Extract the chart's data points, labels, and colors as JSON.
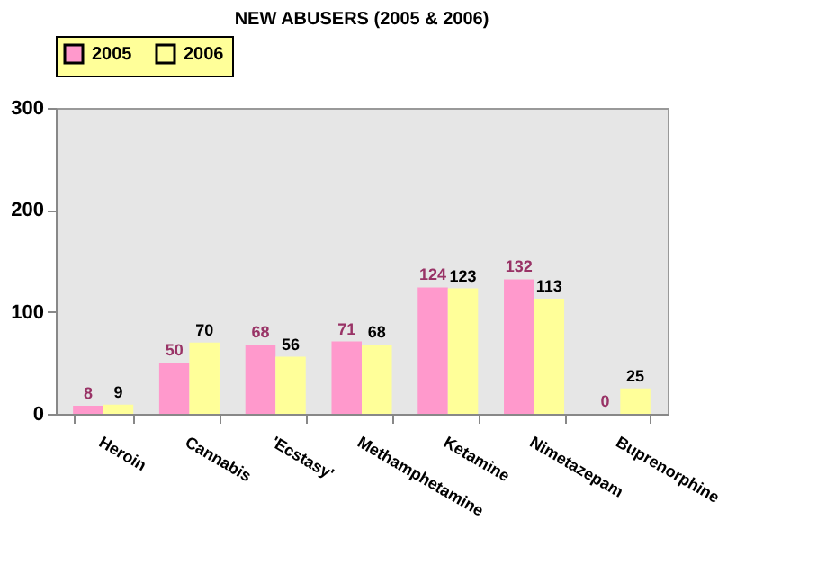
{
  "chart_data": {
    "type": "bar",
    "title": "NEW ABUSERS (2005 & 2006)",
    "categories": [
      "Heroin",
      "Cannabis",
      "'Ecstasy'",
      "Methamphetamine",
      "Ketamine",
      "Nimetazepam",
      "Buprenorphine"
    ],
    "series": [
      {
        "name": "2005",
        "color": "#ff99cc",
        "values": [
          8,
          50,
          68,
          71,
          124,
          132,
          0
        ]
      },
      {
        "name": "2006",
        "color": "#ffff99",
        "values": [
          9,
          70,
          56,
          68,
          123,
          113,
          25
        ]
      }
    ],
    "ylim": [
      0,
      300
    ],
    "yticks": [
      0,
      100,
      200,
      300
    ],
    "grid": false,
    "legend": "top",
    "data_labels": true
  }
}
